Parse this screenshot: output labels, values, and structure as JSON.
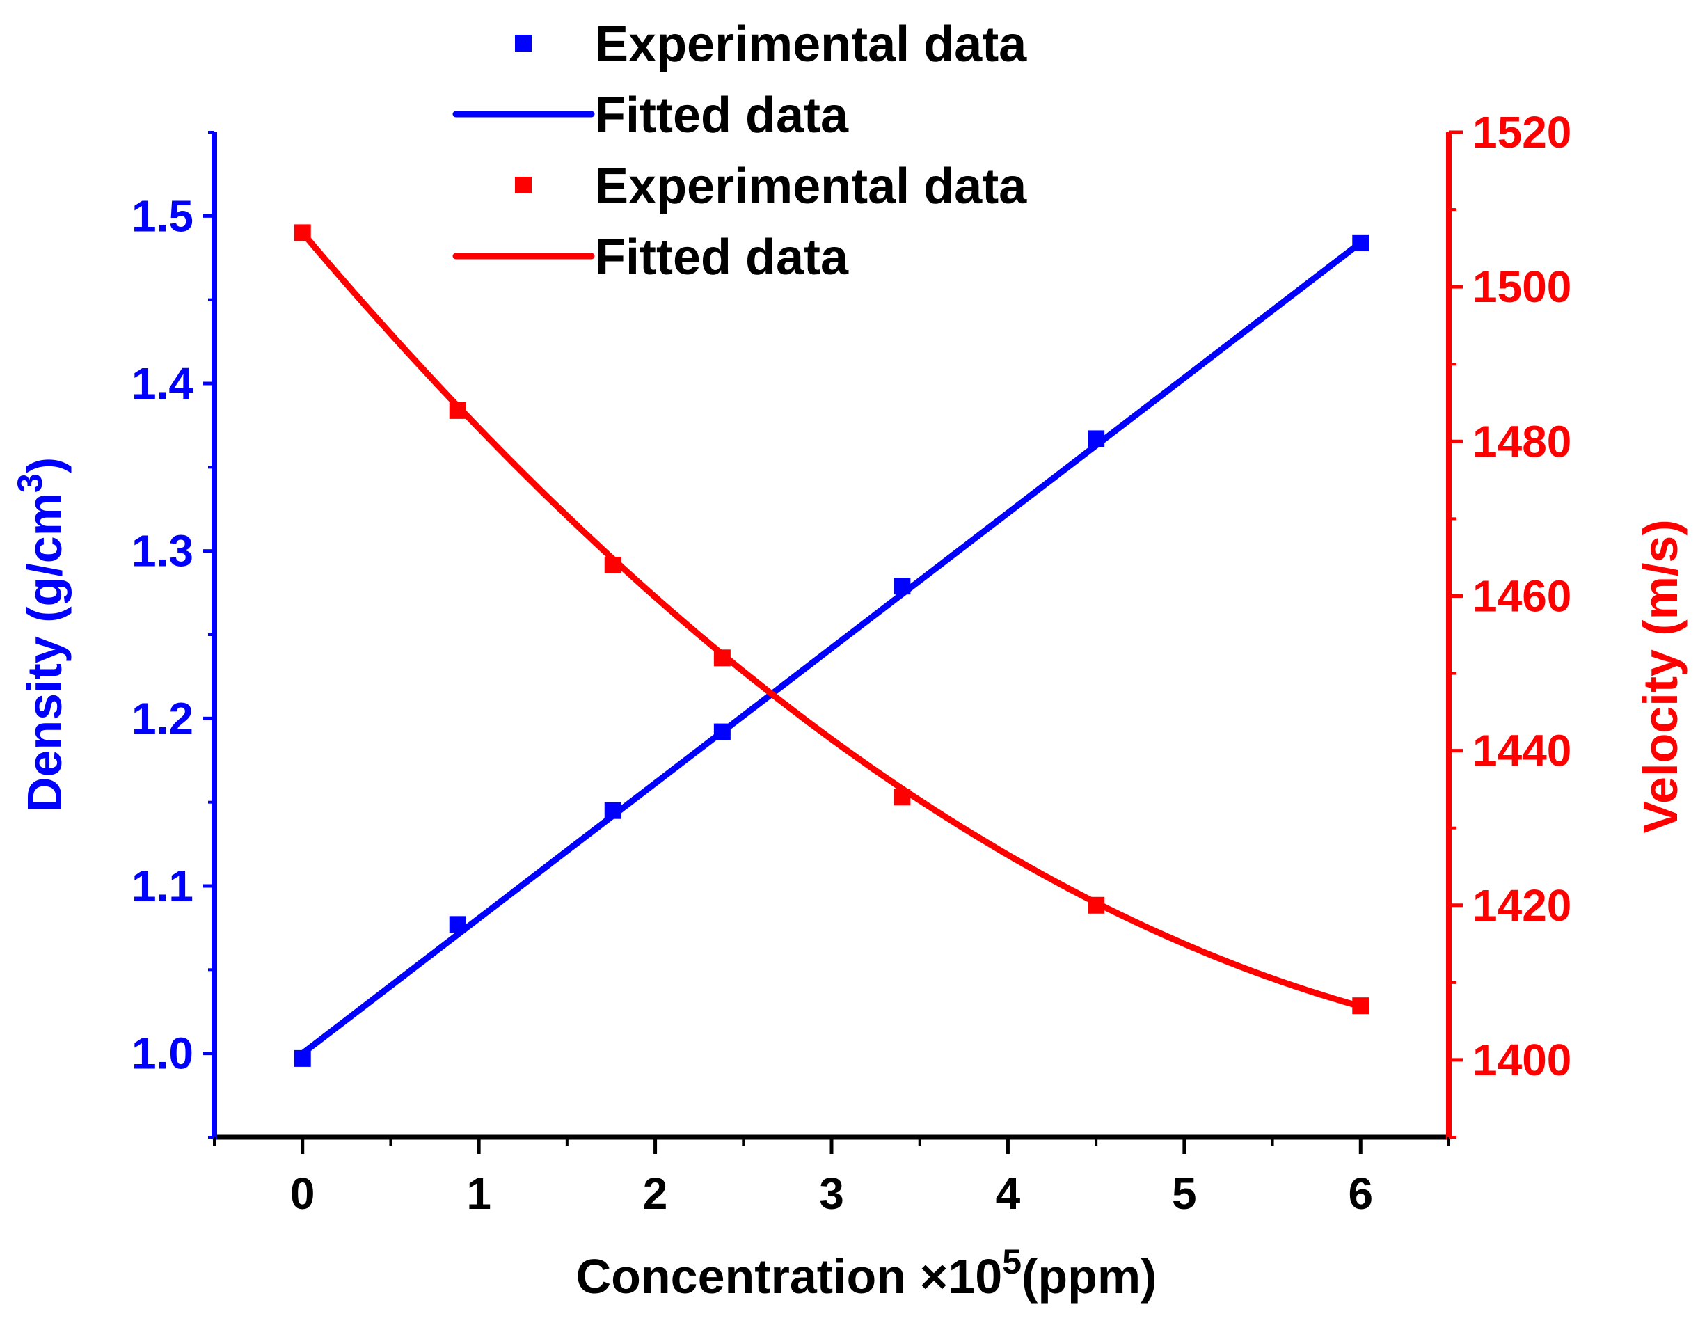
{
  "chart_data": {
    "type": "line",
    "title": "",
    "xlabel": "Concentration",
    "xlabel_multiplier": "×10",
    "xlabel_exponent": "5",
    "xlabel_unit": "(ppm)",
    "xlim": [
      -0.5,
      6.5
    ],
    "x_ticks": [
      0,
      1,
      2,
      3,
      4,
      5,
      6
    ],
    "x_tick_labels": [
      "0",
      "1",
      "2",
      "3",
      "4",
      "5",
      "6"
    ],
    "left_axis": {
      "label": "Density (g/cm",
      "label_superscript": "3",
      "label_close": ")",
      "color": "#0000ff",
      "ylim": [
        0.95,
        1.55
      ],
      "ticks": [
        1.0,
        1.1,
        1.2,
        1.3,
        1.4,
        1.5
      ],
      "tick_labels": [
        "1.0",
        "1.1",
        "1.2",
        "1.3",
        "1.4",
        "1.5"
      ]
    },
    "right_axis": {
      "label": "Velocity (m/s)",
      "color": "#ff0000",
      "ylim": [
        1390,
        1520
      ],
      "ticks": [
        1400,
        1420,
        1440,
        1460,
        1480,
        1500,
        1520
      ],
      "tick_labels": [
        "1400",
        "1420",
        "1440",
        "1460",
        "1480",
        "1500",
        "1520"
      ]
    },
    "series": [
      {
        "name": "Experimental data",
        "axis": "left",
        "style": "square-marker",
        "color": "#0000ff",
        "x": [
          0,
          0.88,
          1.76,
          2.38,
          3.4,
          4.5,
          6.0
        ],
        "values": [
          0.997,
          1.077,
          1.145,
          1.192,
          1.279,
          1.367,
          1.484
        ]
      },
      {
        "name": "Fitted data",
        "axis": "left",
        "style": "line",
        "color": "#0000ff",
        "x": [
          0,
          6.0
        ],
        "values": [
          1.0,
          1.484
        ]
      },
      {
        "name": "Experimental data",
        "axis": "right",
        "style": "square-marker",
        "color": "#ff0000",
        "x": [
          0,
          0.88,
          1.76,
          2.38,
          3.4,
          4.5,
          6.0
        ],
        "values": [
          1507,
          1484,
          1464,
          1452,
          1434,
          1420,
          1407
        ]
      },
      {
        "name": "Fitted data",
        "axis": "right",
        "style": "line",
        "color": "#ff0000",
        "fit": "quadratic",
        "fit_coefficients": [
          1507.0,
          -27.0,
          1.72
        ],
        "x_range": [
          0,
          6.0
        ]
      }
    ],
    "legend": {
      "placement": "top-center",
      "entries": [
        {
          "label": "Experimental data",
          "color": "#0000ff",
          "style": "square-marker"
        },
        {
          "label": "Fitted data",
          "color": "#0000ff",
          "style": "line"
        },
        {
          "label": "Experimental data",
          "color": "#ff0000",
          "style": "square-marker"
        },
        {
          "label": "Fitted data",
          "color": "#ff0000",
          "style": "line"
        }
      ]
    },
    "grid": false
  }
}
